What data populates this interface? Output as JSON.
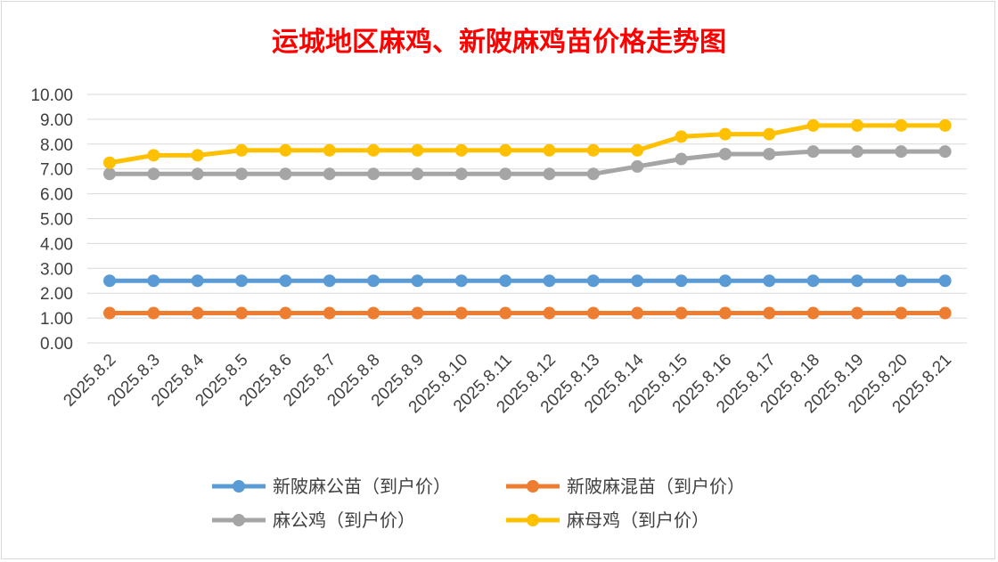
{
  "chart_data": {
    "type": "line",
    "title": "运城地区麻鸡、新陂麻鸡苗价格走势图",
    "categories": [
      "2025.8.2",
      "2025.8.3",
      "2025.8.4",
      "2025.8.5",
      "2025.8.6",
      "2025.8.7",
      "2025.8.8",
      "2025.8.9",
      "2025.8.10",
      "2025.8.11",
      "2025.8.12",
      "2025.8.13",
      "2025.8.14",
      "2025.8.15",
      "2025.8.16",
      "2025.8.17",
      "2025.8.18",
      "2025.8.19",
      "2025.8.20",
      "2025.8.21"
    ],
    "ylim": [
      0,
      10
    ],
    "yticks": [
      "0.00",
      "1.00",
      "2.00",
      "3.00",
      "4.00",
      "5.00",
      "6.00",
      "7.00",
      "8.00",
      "9.00",
      "10.00"
    ],
    "grid": true,
    "legend_position": "bottom",
    "series": [
      {
        "name": "新陂麻公苗（到户价）",
        "color": "#5b9bd5",
        "values": [
          2.5,
          2.5,
          2.5,
          2.5,
          2.5,
          2.5,
          2.5,
          2.5,
          2.5,
          2.5,
          2.5,
          2.5,
          2.5,
          2.5,
          2.5,
          2.5,
          2.5,
          2.5,
          2.5,
          2.5
        ]
      },
      {
        "name": "新陂麻混苗（到户价）",
        "color": "#ed7d31",
        "values": [
          1.2,
          1.2,
          1.2,
          1.2,
          1.2,
          1.2,
          1.2,
          1.2,
          1.2,
          1.2,
          1.2,
          1.2,
          1.2,
          1.2,
          1.2,
          1.2,
          1.2,
          1.2,
          1.2,
          1.2
        ]
      },
      {
        "name": "麻公鸡（到户价）",
        "color": "#a5a5a5",
        "values": [
          6.8,
          6.8,
          6.8,
          6.8,
          6.8,
          6.8,
          6.8,
          6.8,
          6.8,
          6.8,
          6.8,
          6.8,
          7.1,
          7.4,
          7.6,
          7.6,
          7.7,
          7.7,
          7.7,
          7.7
        ]
      },
      {
        "name": "麻母鸡（到户价）",
        "color": "#ffc000",
        "values": [
          7.25,
          7.55,
          7.55,
          7.75,
          7.75,
          7.75,
          7.75,
          7.75,
          7.75,
          7.75,
          7.75,
          7.75,
          7.75,
          8.3,
          8.4,
          8.4,
          8.75,
          8.75,
          8.75,
          8.75
        ]
      }
    ]
  }
}
